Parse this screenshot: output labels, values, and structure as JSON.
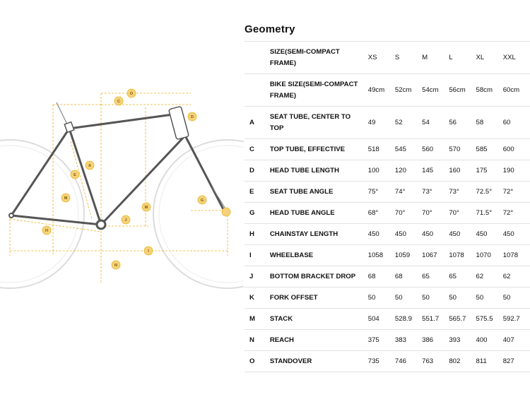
{
  "page": {
    "title": "Geometry"
  },
  "diagram": {
    "dimension_labels": [
      "A",
      "C",
      "D",
      "E",
      "G",
      "H",
      "I",
      "J",
      "K",
      "M",
      "N",
      "O"
    ]
  },
  "table": {
    "rows": [
      {
        "code": "",
        "label": "SIZE(SEMI-COMPACT FRAME)",
        "values": [
          "XS",
          "S",
          "M",
          "L",
          "XL",
          "XXL"
        ]
      },
      {
        "code": "",
        "label": "BIKE SIZE(SEMI-COMPACT FRAME)",
        "values": [
          "49cm",
          "52cm",
          "54cm",
          "56cm",
          "58cm",
          "60cm"
        ]
      },
      {
        "code": "A",
        "label": "SEAT TUBE, CENTER TO TOP",
        "values": [
          "49",
          "52",
          "54",
          "56",
          "58",
          "60"
        ]
      },
      {
        "code": "C",
        "label": "TOP TUBE, EFFECTIVE",
        "values": [
          "518",
          "545",
          "560",
          "570",
          "585",
          "600"
        ]
      },
      {
        "code": "D",
        "label": "HEAD TUBE LENGTH",
        "values": [
          "100",
          "120",
          "145",
          "160",
          "175",
          "190"
        ]
      },
      {
        "code": "E",
        "label": "SEAT TUBE ANGLE",
        "values": [
          "75°",
          "74°",
          "73°",
          "73°",
          "72.5°",
          "72°"
        ]
      },
      {
        "code": "G",
        "label": "HEAD TUBE ANGLE",
        "values": [
          "68°",
          "70°",
          "70°",
          "70°",
          "71.5°",
          "72°"
        ]
      },
      {
        "code": "H",
        "label": "CHAINSTAY LENGTH",
        "values": [
          "450",
          "450",
          "450",
          "450",
          "450",
          "450"
        ]
      },
      {
        "code": "I",
        "label": "WHEELBASE",
        "values": [
          "1058",
          "1059",
          "1067",
          "1078",
          "1070",
          "1078"
        ]
      },
      {
        "code": "J",
        "label": "BOTTOM BRACKET DROP",
        "values": [
          "68",
          "68",
          "65",
          "65",
          "62",
          "62"
        ]
      },
      {
        "code": "K",
        "label": "FORK OFFSET",
        "values": [
          "50",
          "50",
          "50",
          "50",
          "50",
          "50"
        ]
      },
      {
        "code": "M",
        "label": "STACK",
        "values": [
          "504",
          "528.9",
          "551.7",
          "565.7",
          "575.5",
          "592.7"
        ]
      },
      {
        "code": "N",
        "label": "REACH",
        "values": [
          "375",
          "383",
          "386",
          "393",
          "400",
          "407"
        ]
      },
      {
        "code": "O",
        "label": "STANDOVER",
        "values": [
          "735",
          "746",
          "763",
          "802",
          "811",
          "827"
        ]
      }
    ]
  },
  "colors": {
    "accent": "#e8b321",
    "frame": "#555555",
    "wheel": "#dcdcdc"
  }
}
